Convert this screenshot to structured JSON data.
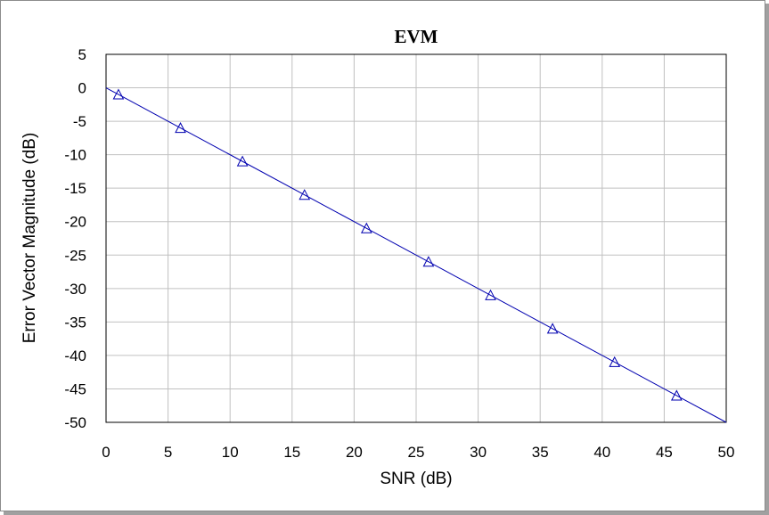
{
  "chart_data": {
    "type": "line",
    "title": "EVM",
    "xlabel": "SNR (dB)",
    "ylabel": "Error Vector Magnitude (dB)",
    "xlim": [
      0,
      50
    ],
    "ylim": [
      -50,
      5
    ],
    "xticks": [
      0,
      5,
      10,
      15,
      20,
      25,
      30,
      35,
      40,
      45,
      50
    ],
    "yticks": [
      5,
      0,
      -5,
      -10,
      -15,
      -20,
      -25,
      -30,
      -35,
      -40,
      -45,
      -50
    ],
    "grid": true,
    "series": [
      {
        "line": {
          "x": [
            0,
            50
          ],
          "y": [
            0,
            -50
          ]
        },
        "markers": {
          "shape": "triangle",
          "x": [
            1,
            6,
            11,
            16,
            21,
            26,
            31,
            36,
            41,
            46
          ],
          "y": [
            -1,
            -6,
            -11,
            -16,
            -21,
            -26,
            -31,
            -36,
            -41,
            -46
          ]
        },
        "color": "#0000b0"
      }
    ]
  }
}
